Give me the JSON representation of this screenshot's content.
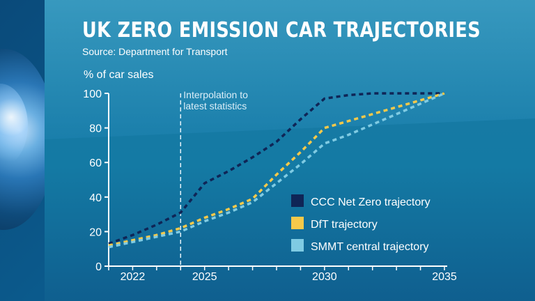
{
  "title": "UK ZERO EMISSION CAR TRAJECTORIES",
  "source": "Source: Department for Transport",
  "chart_data": {
    "type": "line",
    "ylabel": "% of car sales",
    "xlabel": "",
    "xlim": [
      2021,
      2035
    ],
    "ylim": [
      0,
      100
    ],
    "x_ticks": [
      2022,
      2025,
      2030,
      2035
    ],
    "y_ticks": [
      0,
      20,
      40,
      60,
      80,
      100
    ],
    "grid": false,
    "legend_position": "right",
    "annotation": {
      "x": 2024,
      "lines": [
        "Interpolation to",
        "latest statistics"
      ]
    },
    "series": [
      {
        "name": "CCC Net Zero trajectory",
        "color": "#0f2556",
        "x": [
          2021,
          2022,
          2023,
          2024,
          2025,
          2026,
          2027,
          2028,
          2029,
          2030,
          2031,
          2032,
          2033,
          2034,
          2035
        ],
        "y": [
          13,
          18,
          24,
          31,
          48,
          55,
          63,
          72,
          85,
          97,
          99,
          100,
          100,
          100,
          100
        ]
      },
      {
        "name": "DfT trajectory",
        "color": "#f5c94a",
        "x": [
          2021,
          2022,
          2023,
          2024,
          2025,
          2026,
          2027,
          2028,
          2029,
          2030,
          2031,
          2032,
          2033,
          2034,
          2035
        ],
        "y": [
          12,
          15,
          18,
          22,
          28,
          33,
          39,
          53,
          66,
          80,
          84,
          88,
          92,
          96,
          100
        ]
      },
      {
        "name": "SMMT central trajectory",
        "color": "#7fcbe3",
        "x": [
          2021,
          2022,
          2023,
          2024,
          2025,
          2026,
          2027,
          2028,
          2029,
          2030,
          2031,
          2032,
          2033,
          2034,
          2035
        ],
        "y": [
          11,
          14,
          17,
          20,
          26,
          31,
          37,
          48,
          59,
          71,
          76,
          82,
          88,
          94,
          100
        ]
      }
    ]
  }
}
